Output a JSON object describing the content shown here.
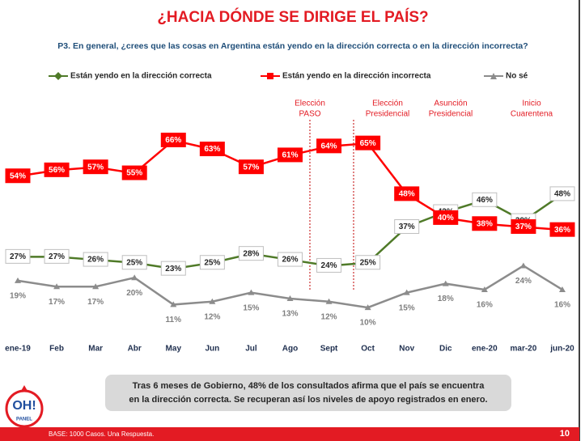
{
  "chart_data": {
    "type": "line",
    "title": "¿HACIA DÓNDE SE DIRIGE EL PAÍS?",
    "subtitle": "P3. En general, ¿crees que las cosas en Argentina están yendo en la dirección correcta o en la dirección incorrecta?",
    "categories": [
      "ene-19",
      "Feb",
      "Mar",
      "Abr",
      "May",
      "Jun",
      "Jul",
      "Ago",
      "Sept",
      "Oct",
      "Nov",
      "Dic",
      "ene-20",
      "mar-20",
      "jun-20"
    ],
    "series": [
      {
        "name": "Están yendo en la dirección correcta",
        "color": "#4f7a28",
        "values": [
          27,
          27,
          26,
          25,
          23,
          25,
          28,
          26,
          24,
          25,
          37,
          42,
          46,
          39,
          48
        ],
        "value_labels": [
          "27%",
          "27%",
          "26%",
          "25%",
          "23%",
          "25%",
          "28%",
          "26%",
          "24%",
          "25%",
          "37%",
          "42%",
          "46%",
          "39%",
          "48%"
        ]
      },
      {
        "name": "Están yendo en la dirección incorrecta",
        "color": "#ff0000",
        "values": [
          54,
          56,
          57,
          55,
          66,
          63,
          57,
          61,
          64,
          65,
          48,
          40,
          38,
          37,
          36
        ],
        "value_labels": [
          "54%",
          "56%",
          "57%",
          "55%",
          "66%",
          "63%",
          "57%",
          "61%",
          "64%",
          "65%",
          "48%",
          "40%",
          "38%",
          "37%",
          "36%"
        ]
      },
      {
        "name": "No sé",
        "color": "#8c8c8c",
        "values": [
          19,
          17,
          17,
          20,
          11,
          12,
          15,
          13,
          12,
          10,
          15,
          18,
          16,
          24,
          16
        ],
        "value_labels": [
          "19%",
          "17%",
          "17%",
          "20%",
          "11%",
          "12%",
          "15%",
          "13%",
          "12%",
          "10%",
          "15%",
          "18%",
          "16%",
          "24%",
          "16%"
        ]
      }
    ],
    "annotations": [
      {
        "lines": [
          "Elección",
          "PASO"
        ]
      },
      {
        "lines": [
          "Elección",
          "Presidencial"
        ]
      },
      {
        "lines": [
          "Asunción",
          "Presidencial"
        ]
      },
      {
        "lines": [
          "Inicio",
          "Cuarentena"
        ]
      }
    ],
    "callout": [
      "Tras 6 meses de Gobierno, 48% de los consultados afirma que el país se encuentra",
      "en la dirección correcta. Se recuperan así los niveles de apoyo registrados en enero."
    ],
    "footer": "BASE: 1000 Casos. Una Respuesta.",
    "page_number": "10",
    "logo": [
      "OH!",
      "PANEL"
    ]
  }
}
